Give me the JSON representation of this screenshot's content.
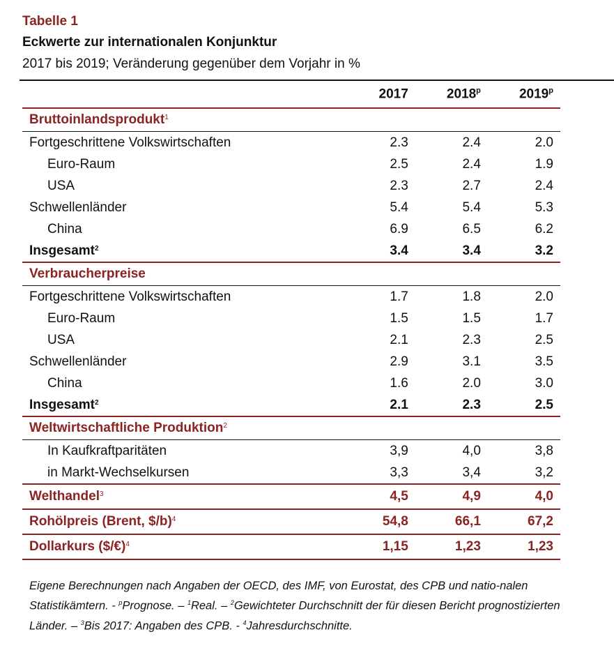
{
  "header": {
    "label": "Tabelle 1",
    "title": "Eckwerte zur internationalen Konjunktur",
    "subtitle": "2017 bis 2019; Veränderung gegenüber dem Vorjahr in %"
  },
  "columns": [
    {
      "year": "2017",
      "suffix": ""
    },
    {
      "year": "2018",
      "suffix": "p"
    },
    {
      "year": "2019",
      "suffix": "p"
    }
  ],
  "sections": {
    "bip": {
      "title": "Bruttoinlandsprodukt",
      "fn": "1",
      "rows": [
        {
          "label": "Fortgeschrittene Volkswirtschaften",
          "v": [
            "2.3",
            "2.4",
            "2.0"
          ]
        },
        {
          "label": "Euro-Raum",
          "v": [
            "2.5",
            "2.4",
            "1.9"
          ]
        },
        {
          "label": "USA",
          "v": [
            "2.3",
            "2.7",
            "2.4"
          ]
        },
        {
          "label": "Schwellenländer",
          "v": [
            "5.4",
            "5.4",
            "5.3"
          ]
        },
        {
          "label": "China",
          "v": [
            "6.9",
            "6.5",
            "6.2"
          ]
        }
      ],
      "total": {
        "label": "Insgesamt",
        "fn": "2",
        "v": [
          "3.4",
          "3.4",
          "3.2"
        ]
      }
    },
    "vpi": {
      "title": "Verbraucherpreise",
      "rows": [
        {
          "label": "Fortgeschrittene Volkswirtschaften",
          "v": [
            "1.7",
            "1.8",
            "2.0"
          ]
        },
        {
          "label": "Euro-Raum",
          "v": [
            "1.5",
            "1.5",
            "1.7"
          ]
        },
        {
          "label": "USA",
          "v": [
            "2.1",
            "2.3",
            "2.5"
          ]
        },
        {
          "label": "Schwellenländer",
          "v": [
            "2.9",
            "3.1",
            "3.5"
          ]
        },
        {
          "label": "China",
          "v": [
            "1.6",
            "2.0",
            "3.0"
          ]
        }
      ],
      "total": {
        "label": "Insgesamt",
        "fn": "2",
        "v": [
          "2.1",
          "2.3",
          "2.5"
        ]
      }
    },
    "wwp": {
      "title": "Weltwirtschaftliche Produktion",
      "fn": "2",
      "rows": [
        {
          "label": "In Kaufkraftparitäten",
          "v": [
            "3,9",
            "4,0",
            "3,8"
          ]
        },
        {
          "label": "in Markt-Wechselkursen",
          "v": [
            "3,3",
            "3,4",
            "3,2"
          ]
        }
      ]
    }
  },
  "highlights": [
    {
      "label": "Welthandel",
      "fn": "3",
      "v": [
        "4,5",
        "4,9",
        "4,0"
      ]
    },
    {
      "label": "Rohölpreis (Brent, $/b)",
      "fn": "4",
      "v": [
        "54,8",
        "66,1",
        "67,2"
      ]
    },
    {
      "label": "Dollarkurs ($/€)",
      "fn": "4",
      "v": [
        "1,15",
        "1,23",
        "1,23"
      ]
    }
  ],
  "notes": {
    "text1": "Eigene Berechnungen nach Angaben der OECD, des IMF, von Eurostat, des CPB und natio-nalen Statistikämtern. - ",
    "p_fn": "p",
    "text2": "Prognose. – ",
    "fn1": "1",
    "text3": "Real. – ",
    "fn2": "2",
    "text4": "Gewichteter Durchschnitt der für diesen Bericht prognostizierten Länder. – ",
    "fn3": "3",
    "text5": "Bis 2017: Angaben des CPB. - ",
    "fn4": "4",
    "text6": "Jahresdurchschnitte."
  },
  "colors": {
    "accent": "#8b2323",
    "text": "#111111"
  }
}
